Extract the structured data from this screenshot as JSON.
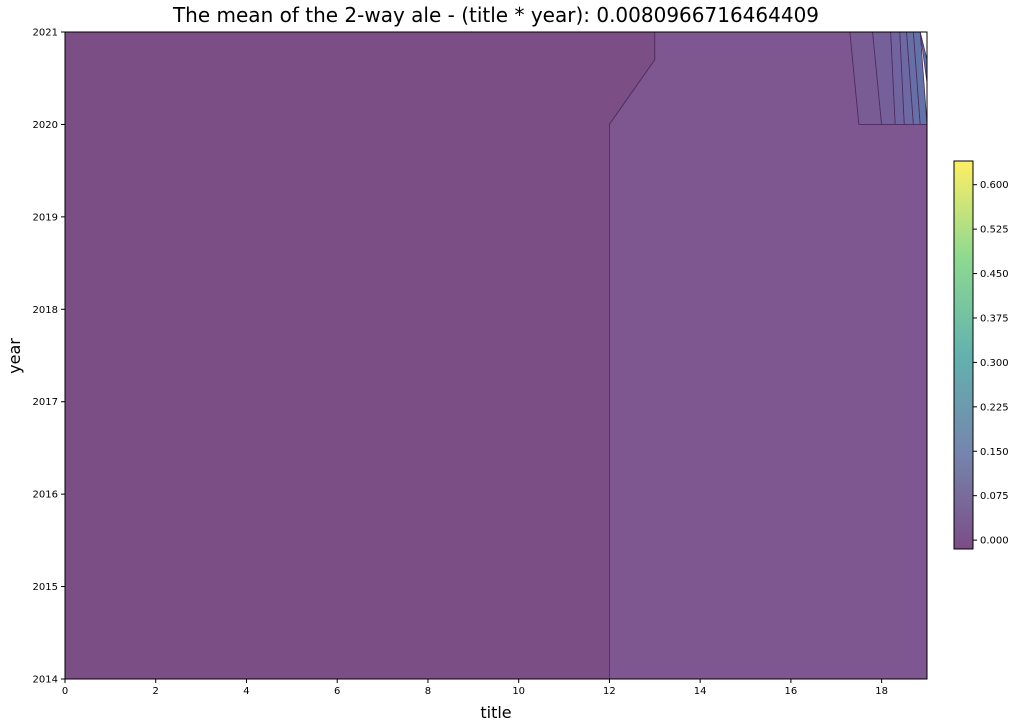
{
  "chart_data": {
    "type": "contour",
    "title": "The mean of the 2-way ale - (title * year): 0.0080966716464409",
    "xlabel": "title",
    "ylabel": "year",
    "xlim": [
      0,
      19
    ],
    "ylim": [
      2014,
      2021
    ],
    "x_ticks": [
      0,
      2,
      4,
      6,
      8,
      10,
      12,
      14,
      16,
      18
    ],
    "y_ticks": [
      2014,
      2015,
      2016,
      2017,
      2018,
      2019,
      2020,
      2021
    ],
    "colorbar": {
      "ticks": [
        "0.000",
        "0.075",
        "0.150",
        "0.225",
        "0.300",
        "0.375",
        "0.450",
        "0.525",
        "0.600"
      ],
      "range": [
        -0.015,
        0.64
      ],
      "colormap": "viridis",
      "alpha": 0.7
    },
    "regions": [
      {
        "level": 0.0,
        "color": "#7b4f86",
        "points": [
          [
            0,
            2014
          ],
          [
            12,
            2014
          ],
          [
            12,
            2020
          ],
          [
            13,
            2020.7
          ],
          [
            13,
            2021
          ],
          [
            0,
            2021
          ]
        ]
      },
      {
        "level": 0.01,
        "color": "#7e5690",
        "points": [
          [
            12,
            2014
          ],
          [
            19,
            2014
          ],
          [
            19,
            2020
          ],
          [
            17.5,
            2020
          ],
          [
            17.3,
            2021
          ],
          [
            13,
            2021
          ],
          [
            13,
            2020.7
          ],
          [
            12,
            2020
          ]
        ]
      },
      {
        "level": 0.02,
        "color": "#7a5c94",
        "points": [
          [
            17.5,
            2020
          ],
          [
            18,
            2020
          ],
          [
            17.8,
            2021
          ],
          [
            17.3,
            2021
          ]
        ]
      },
      {
        "level": 0.04,
        "color": "#76609a",
        "points": [
          [
            18,
            2020
          ],
          [
            18.3,
            2020
          ],
          [
            18.2,
            2021
          ],
          [
            17.8,
            2021
          ]
        ]
      },
      {
        "level": 0.06,
        "color": "#72659f",
        "points": [
          [
            18.3,
            2020
          ],
          [
            18.5,
            2020
          ],
          [
            18.4,
            2021
          ],
          [
            18.2,
            2021
          ]
        ]
      },
      {
        "level": 0.08,
        "color": "#6d6aa3",
        "points": [
          [
            18.5,
            2020
          ],
          [
            18.7,
            2020
          ],
          [
            18.55,
            2021
          ],
          [
            18.4,
            2021
          ]
        ]
      },
      {
        "level": 0.1,
        "color": "#686fa6",
        "points": [
          [
            18.7,
            2020
          ],
          [
            18.85,
            2020
          ],
          [
            18.7,
            2021
          ],
          [
            18.55,
            2021
          ]
        ]
      },
      {
        "level": 0.12,
        "color": "#6373a8",
        "points": [
          [
            18.85,
            2020
          ],
          [
            19,
            2020
          ],
          [
            18.85,
            2021
          ],
          [
            18.7,
            2021
          ]
        ]
      },
      {
        "level": 0.14,
        "color": "#5e78a9",
        "points": [
          [
            19,
            2020.45
          ],
          [
            19,
            2020.7
          ],
          [
            18.85,
            2021
          ]
        ]
      }
    ]
  }
}
